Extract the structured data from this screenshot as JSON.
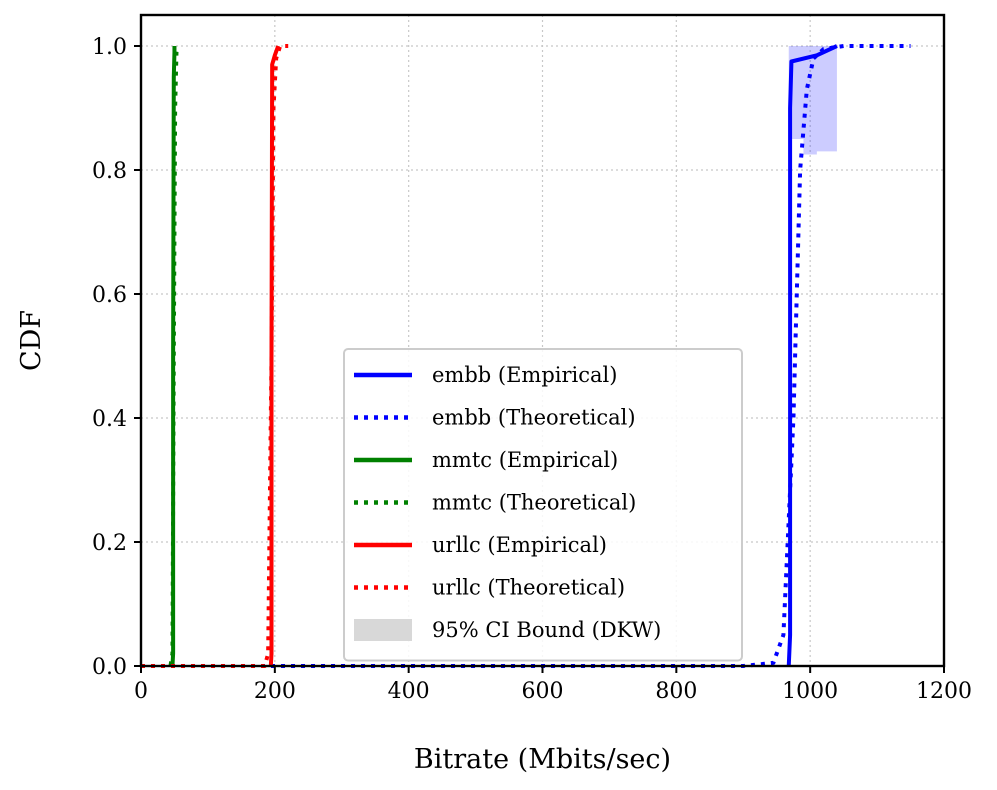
{
  "chart_data": {
    "type": "line",
    "title": "",
    "xlabel": "Bitrate (Mbits/sec)",
    "ylabel": "CDF",
    "xlim": [
      0,
      1200
    ],
    "ylim": [
      0,
      1.05
    ],
    "xticks": [
      0,
      200,
      400,
      600,
      800,
      1000,
      1200
    ],
    "yticks": [
      0.0,
      0.2,
      0.4,
      0.6,
      0.8,
      1.0
    ],
    "xtick_labels": [
      "0",
      "200",
      "400",
      "600",
      "800",
      "1000",
      "1200"
    ],
    "ytick_labels": [
      "0.0",
      "0.2",
      "0.4",
      "0.6",
      "0.8",
      "1.0"
    ],
    "grid": true,
    "legend_position": "lower-center",
    "series": [
      {
        "name": "embb (Empirical)",
        "color": "#0000ff",
        "style": "solid",
        "x": [
          968,
          970,
          970,
          970,
          972,
          1010,
          1040,
          1040
        ],
        "y": [
          0.0,
          0.05,
          0.5,
          0.9,
          0.975,
          0.985,
          1.0,
          1.0
        ]
      },
      {
        "name": "embb (Theoretical)",
        "color": "#0000ff",
        "style": "dotted",
        "x": [
          0,
          900,
          945,
          960,
          975,
          985,
          995,
          1005,
          1020,
          1050,
          1150
        ],
        "y": [
          0.0,
          0.0,
          0.005,
          0.05,
          0.4,
          0.8,
          0.93,
          0.98,
          0.995,
          1.0,
          1.0
        ]
      },
      {
        "name": "mmtc (Empirical)",
        "color": "#008000",
        "style": "solid",
        "x": [
          47,
          48,
          48,
          49,
          50,
          50
        ],
        "y": [
          0.0,
          0.02,
          0.5,
          0.95,
          0.99,
          1.0
        ]
      },
      {
        "name": "mmtc (Theoretical)",
        "color": "#008000",
        "style": "dotted",
        "x": [
          0,
          44,
          47,
          49,
          51,
          53,
          55
        ],
        "y": [
          0.0,
          0.0,
          0.02,
          0.5,
          0.9,
          0.99,
          1.0
        ]
      },
      {
        "name": "urllc (Empirical)",
        "color": "#ff0000",
        "style": "solid",
        "x": [
          194,
          195,
          195,
          196,
          200,
          205,
          205
        ],
        "y": [
          0.0,
          0.02,
          0.5,
          0.97,
          0.985,
          1.0,
          1.0
        ]
      },
      {
        "name": "urllc (Theoretical)",
        "color": "#ff0000",
        "style": "dotted",
        "x": [
          0,
          185,
          190,
          195,
          198,
          202,
          208,
          220
        ],
        "y": [
          0.0,
          0.0,
          0.02,
          0.5,
          0.9,
          0.98,
          1.0,
          1.0
        ]
      }
    ],
    "ci_band": {
      "name": "95% CI Bound (DKW)",
      "series": "embb (Empirical)",
      "color": "#0000ff",
      "x": [
        968,
        970,
        990,
        1000,
        1010,
        1040
      ],
      "lower": [
        0.9,
        0.85,
        0.825,
        0.825,
        0.83,
        0.835
      ],
      "upper": [
        1.0,
        1.0,
        1.0,
        1.0,
        1.0,
        1.0
      ]
    },
    "legend": {
      "entries": [
        {
          "label": "embb (Empirical)",
          "color": "#0000ff",
          "style": "solid"
        },
        {
          "label": "embb (Theoretical)",
          "color": "#0000ff",
          "style": "dotted"
        },
        {
          "label": "mmtc (Empirical)",
          "color": "#008000",
          "style": "solid"
        },
        {
          "label": "mmtc (Theoretical)",
          "color": "#008000",
          "style": "dotted"
        },
        {
          "label": "urllc (Empirical)",
          "color": "#ff0000",
          "style": "solid"
        },
        {
          "label": "urllc (Theoretical)",
          "color": "#ff0000",
          "style": "dotted"
        },
        {
          "label": "95% CI Bound (DKW)",
          "color": "#d8d8d8",
          "style": "patch"
        }
      ]
    }
  }
}
